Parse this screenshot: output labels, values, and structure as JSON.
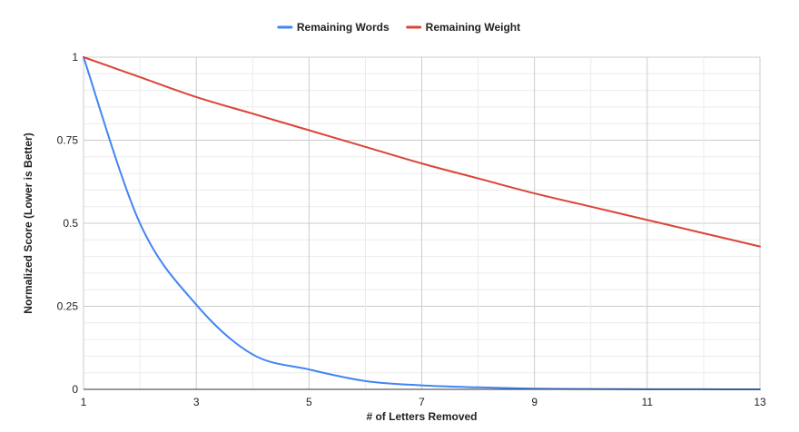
{
  "chart_data": {
    "type": "line",
    "title": "",
    "xlabel": "# of Letters Removed",
    "ylabel": "Normalized Score (Lower is Better)",
    "xlim": [
      1,
      13
    ],
    "ylim": [
      0,
      1
    ],
    "x_ticks": [
      1,
      3,
      5,
      7,
      9,
      11,
      13
    ],
    "x_tick_labels": [
      "1",
      "3",
      "5",
      "7",
      "9",
      "11",
      "13"
    ],
    "y_ticks": [
      0,
      0.25,
      0.5,
      0.75,
      1
    ],
    "y_tick_labels": [
      "0",
      "0.25",
      "0.5",
      "0.75",
      "1"
    ],
    "grid": true,
    "legend_position": "top",
    "x": [
      1,
      2,
      3,
      4,
      5,
      6,
      7,
      8,
      9,
      10,
      11,
      12,
      13
    ],
    "series": [
      {
        "name": "Remaining Words",
        "color": "#4285f4",
        "values": [
          1.0,
          0.5,
          0.255,
          0.105,
          0.06,
          0.025,
          0.012,
          0.006,
          0.002,
          0.001,
          0.0005,
          0.0002,
          0.0001
        ]
      },
      {
        "name": "Remaining Weight",
        "color": "#db4437",
        "values": [
          1.0,
          0.94,
          0.88,
          0.83,
          0.78,
          0.73,
          0.68,
          0.635,
          0.59,
          0.55,
          0.51,
          0.47,
          0.43
        ]
      }
    ]
  }
}
